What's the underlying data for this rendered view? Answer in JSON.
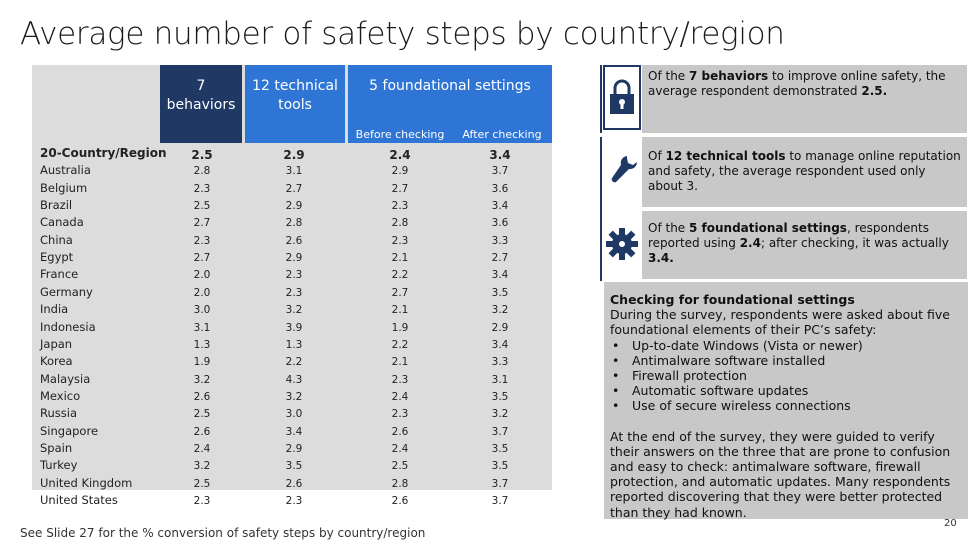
{
  "title": "Average number of safety steps by country/region",
  "headers": {
    "behaviors": "7 behaviors",
    "technical": "12 technical tools",
    "foundational": "5 foundational settings",
    "before": "Before checking",
    "after": "After checking"
  },
  "rows": [
    {
      "label": "20-Country/Region",
      "b": "2.5",
      "t": "2.9",
      "before": "2.4",
      "after": "3.4"
    },
    {
      "label": "Australia",
      "b": "2.8",
      "t": "3.1",
      "before": "2.9",
      "after": "3.7"
    },
    {
      "label": "Belgium",
      "b": "2.3",
      "t": "2.7",
      "before": "2.7",
      "after": "3.6"
    },
    {
      "label": "Brazil",
      "b": "2.5",
      "t": "2.9",
      "before": "2.3",
      "after": "3.4"
    },
    {
      "label": "Canada",
      "b": "2.7",
      "t": "2.8",
      "before": "2.8",
      "after": "3.6"
    },
    {
      "label": "China",
      "b": "2.3",
      "t": "2.6",
      "before": "2.3",
      "after": "3.3"
    },
    {
      "label": "Egypt",
      "b": "2.7",
      "t": "2.9",
      "before": "2.1",
      "after": "2.7"
    },
    {
      "label": "France",
      "b": "2.0",
      "t": "2.3",
      "before": "2.2",
      "after": "3.4"
    },
    {
      "label": "Germany",
      "b": "2.0",
      "t": "2.3",
      "before": "2.7",
      "after": "3.5"
    },
    {
      "label": "India",
      "b": "3.0",
      "t": "3.2",
      "before": "2.1",
      "after": "3.2"
    },
    {
      "label": "Indonesia",
      "b": "3.1",
      "t": "3.9",
      "before": "1.9",
      "after": "2.9"
    },
    {
      "label": "Japan",
      "b": "1.3",
      "t": "1.3",
      "before": "2.2",
      "after": "3.4"
    },
    {
      "label": "Korea",
      "b": "1.9",
      "t": "2.2",
      "before": "2.1",
      "after": "3.3"
    },
    {
      "label": "Malaysia",
      "b": "3.2",
      "t": "4.3",
      "before": "2.3",
      "after": "3.1"
    },
    {
      "label": "Mexico",
      "b": "2.6",
      "t": "3.2",
      "before": "2.4",
      "after": "3.5"
    },
    {
      "label": "Russia",
      "b": "2.5",
      "t": "3.0",
      "before": "2.3",
      "after": "3.2"
    },
    {
      "label": "Singapore",
      "b": "2.6",
      "t": "3.4",
      "before": "2.6",
      "after": "3.7"
    },
    {
      "label": "Spain",
      "b": "2.4",
      "t": "2.9",
      "before": "2.4",
      "after": "3.5"
    },
    {
      "label": "Turkey",
      "b": "3.2",
      "t": "3.5",
      "before": "2.5",
      "after": "3.5"
    },
    {
      "label": "United Kingdom",
      "b": "2.5",
      "t": "2.6",
      "before": "2.8",
      "after": "3.7"
    },
    {
      "label": "United States",
      "b": "2.3",
      "t": "2.3",
      "before": "2.6",
      "after": "3.7"
    }
  ],
  "footnote": "See Slide 27 for the % conversion of safety steps by country/region",
  "callouts": {
    "c1_pre": "Of the ",
    "c1_bold1": "7 behaviors",
    "c1_mid": " to improve online safety, the average respondent demonstrated ",
    "c1_bold2": "2.5.",
    "c2_pre": "Of ",
    "c2_bold1": "12 technical tools",
    "c2_mid": " to manage online reputation and safety, the average respondent used only about 3.",
    "c3_pre": "Of the ",
    "c3_bold1": "5 foundational settings",
    "c3_mid": ", respondents reported using ",
    "c3_bold2": "2.4",
    "c3_mid2": "; after checking, it was actually ",
    "c3_bold3": "3.4."
  },
  "info": {
    "heading": "Checking for foundational settings",
    "intro": "During the survey, respondents were asked about five foundational elements of their PC’s safety:",
    "items": [
      "Up-to-date Windows (Vista or newer)",
      "Antimalware software installed",
      "Firewall protection",
      "Automatic software updates",
      "Use of secure wireless connections"
    ],
    "para2": "At the end of the survey, they were guided to verify their answers on the three that are prone to confusion and easy to check: antimalware software, firewall protection, and automatic updates. Many respondents reported discovering that they were better protected than they had known."
  },
  "page_number": "20",
  "icons": [
    "lock-icon",
    "wrench-icon",
    "gear-icon"
  ]
}
